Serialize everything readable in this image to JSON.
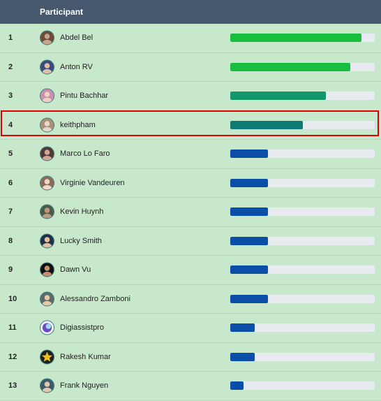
{
  "header": {
    "participant_label": "Participant"
  },
  "colors": {
    "green": "#17bd3d",
    "teal_green": "#12976a",
    "teal": "#0e7a73",
    "blue": "#0a4ea8"
  },
  "rows": [
    {
      "rank": "1",
      "name": "Abdel Bel",
      "progress": 0.91,
      "bar_color": "#17bd3d",
      "avatar_icon": "user-photo-icon"
    },
    {
      "rank": "2",
      "name": "Anton RV",
      "progress": 0.83,
      "bar_color": "#17bd3d",
      "avatar_icon": "user-photo-icon"
    },
    {
      "rank": "3",
      "name": "Pintu Bachhar",
      "progress": 0.66,
      "bar_color": "#12976a",
      "avatar_icon": "user-photo-icon"
    },
    {
      "rank": "4",
      "name": "keithpham",
      "progress": 0.5,
      "bar_color": "#0e7a73",
      "avatar_icon": "user-photo-icon"
    },
    {
      "rank": "5",
      "name": "Marco Lo Faro",
      "progress": 0.26,
      "bar_color": "#0a4ea8",
      "avatar_icon": "user-photo-icon"
    },
    {
      "rank": "6",
      "name": "Virginie Vandeuren",
      "progress": 0.26,
      "bar_color": "#0a4ea8",
      "avatar_icon": "user-photo-icon"
    },
    {
      "rank": "7",
      "name": "Kevin Huynh",
      "progress": 0.26,
      "bar_color": "#0a4ea8",
      "avatar_icon": "user-photo-icon"
    },
    {
      "rank": "8",
      "name": "Lucky Smith",
      "progress": 0.26,
      "bar_color": "#0a4ea8",
      "avatar_icon": "user-photo-icon"
    },
    {
      "rank": "9",
      "name": "Dawn Vu",
      "progress": 0.26,
      "bar_color": "#0a4ea8",
      "avatar_icon": "user-photo-icon"
    },
    {
      "rank": "10",
      "name": "Alessandro Zamboni",
      "progress": 0.26,
      "bar_color": "#0a4ea8",
      "avatar_icon": "user-photo-icon"
    },
    {
      "rank": "11",
      "name": "Digiassistpro",
      "progress": 0.17,
      "bar_color": "#0a4ea8",
      "avatar_icon": "logo-icon"
    },
    {
      "rank": "12",
      "name": "Rakesh Kumar",
      "progress": 0.17,
      "bar_color": "#0a4ea8",
      "avatar_icon": "star-icon"
    },
    {
      "rank": "13",
      "name": "Frank Nguyen",
      "progress": 0.09,
      "bar_color": "#0a4ea8",
      "avatar_icon": "user-photo-icon"
    }
  ]
}
